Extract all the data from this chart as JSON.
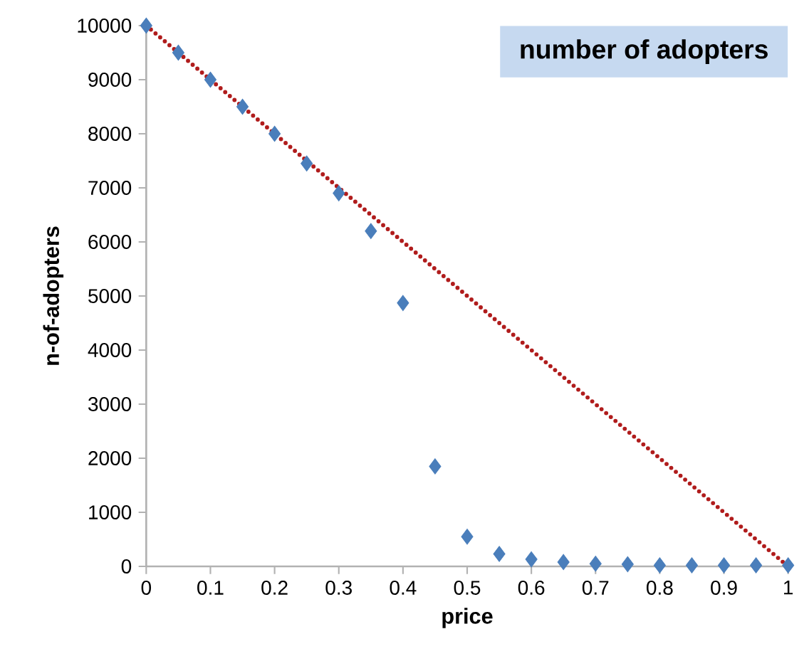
{
  "chart_data": {
    "type": "scatter",
    "title": "number of adopters",
    "xlabel": "price",
    "ylabel": "n-of-adopters",
    "x": [
      0,
      0.05,
      0.1,
      0.15,
      0.2,
      0.25,
      0.3,
      0.35,
      0.4,
      0.45,
      0.5,
      0.55,
      0.6,
      0.65,
      0.7,
      0.75,
      0.8,
      0.85,
      0.9,
      0.95,
      1
    ],
    "series": [
      {
        "color": "#4a7ebb",
        "marker": "diamond",
        "values": [
          10000,
          9500,
          9000,
          8500,
          8000,
          7450,
          6900,
          6200,
          4870,
          1850,
          550,
          230,
          130,
          80,
          50,
          40,
          20,
          20,
          20,
          20,
          20
        ]
      },
      {
        "type": "line",
        "color": "#b01c1c",
        "line_style": "dotted",
        "x": [
          0,
          1
        ],
        "values": [
          10000,
          0
        ]
      }
    ],
    "xlim": [
      0,
      1
    ],
    "ylim": [
      0,
      10000
    ],
    "xticks": [
      0,
      0.1,
      0.2,
      0.3,
      0.4,
      0.5,
      0.6,
      0.7,
      0.8,
      0.9,
      1
    ],
    "yticks": [
      0,
      1000,
      2000,
      3000,
      4000,
      5000,
      6000,
      7000,
      8000,
      9000,
      10000
    ],
    "grid": false
  }
}
